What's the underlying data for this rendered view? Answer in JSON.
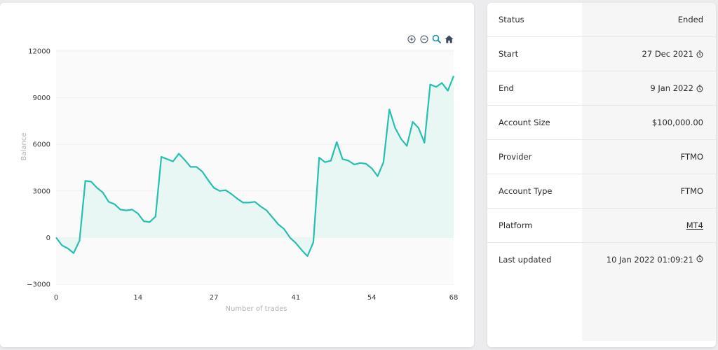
{
  "chart_data": {
    "type": "area",
    "title": "",
    "xlabel": "Number of trades",
    "ylabel": "Balance",
    "xlim": [
      0,
      68
    ],
    "ylim": [
      -3000,
      12000
    ],
    "x_ticks": [
      0,
      14,
      27,
      41,
      54,
      68
    ],
    "y_ticks": [
      -3000,
      0,
      3000,
      6000,
      9000,
      12000
    ],
    "y_tick_labels": [
      "−3000",
      "0",
      "3000",
      "6000",
      "9000",
      "12000"
    ],
    "line_color": "#27bfb0",
    "fill_color": "#e9f7f4",
    "grid": true,
    "series": [
      {
        "values": [
          [
            0,
            0
          ],
          [
            1,
            -500
          ],
          [
            2,
            -700
          ],
          [
            3,
            -1000
          ],
          [
            4,
            -200
          ],
          [
            5,
            3650
          ],
          [
            6,
            3600
          ],
          [
            7,
            3200
          ],
          [
            8,
            2900
          ],
          [
            9,
            2300
          ],
          [
            10,
            2150
          ],
          [
            11,
            1800
          ],
          [
            12,
            1750
          ],
          [
            13,
            1800
          ],
          [
            14,
            1550
          ],
          [
            15,
            1050
          ],
          [
            16,
            1000
          ],
          [
            17,
            1350
          ],
          [
            18,
            5200
          ],
          [
            19,
            5050
          ],
          [
            20,
            4900
          ],
          [
            21,
            5400
          ],
          [
            22,
            5000
          ],
          [
            23,
            4550
          ],
          [
            24,
            4550
          ],
          [
            25,
            4250
          ],
          [
            26,
            3700
          ],
          [
            27,
            3200
          ],
          [
            28,
            3000
          ],
          [
            29,
            3050
          ],
          [
            30,
            2800
          ],
          [
            31,
            2500
          ],
          [
            32,
            2250
          ],
          [
            33,
            2250
          ],
          [
            34,
            2300
          ],
          [
            35,
            2000
          ],
          [
            36,
            1750
          ],
          [
            37,
            1300
          ],
          [
            38,
            850
          ],
          [
            39,
            550
          ],
          [
            40,
            0
          ],
          [
            41,
            -350
          ],
          [
            42,
            -800
          ],
          [
            43,
            -1200
          ],
          [
            44,
            -300
          ],
          [
            45,
            5150
          ],
          [
            46,
            4850
          ],
          [
            47,
            4950
          ],
          [
            48,
            6150
          ],
          [
            49,
            5050
          ],
          [
            50,
            4950
          ],
          [
            51,
            4700
          ],
          [
            52,
            4800
          ],
          [
            53,
            4750
          ],
          [
            54,
            4450
          ],
          [
            55,
            3950
          ],
          [
            56,
            4850
          ],
          [
            57,
            8250
          ],
          [
            58,
            7050
          ],
          [
            59,
            6350
          ],
          [
            60,
            5900
          ],
          [
            61,
            7450
          ],
          [
            62,
            7050
          ],
          [
            63,
            6100
          ],
          [
            64,
            9850
          ],
          [
            65,
            9700
          ],
          [
            66,
            9950
          ],
          [
            67,
            9450
          ],
          [
            68,
            10400
          ]
        ]
      }
    ]
  },
  "toolbar": {
    "icons": [
      "zoom-in-icon",
      "zoom-out-icon",
      "zoom-select-icon",
      "home-icon"
    ],
    "color": "#3d4b5c"
  },
  "info": {
    "rows": [
      {
        "label": "Status",
        "value": "Ended"
      },
      {
        "label": "Start",
        "value": "27 Dec 2021",
        "icon": "clock-icon"
      },
      {
        "label": "End",
        "value": "9 Jan 2022",
        "icon": "clock-icon"
      },
      {
        "label": "Account Size",
        "value": "$100,000.00"
      },
      {
        "label": "Provider",
        "value": "FTMO"
      },
      {
        "label": "Account Type",
        "value": "FTMO"
      },
      {
        "label": "Platform",
        "value": "MT4"
      },
      {
        "label": "Last updated",
        "value": "10 Jan 2022 01:09:21",
        "icon": "clock-icon"
      }
    ]
  }
}
